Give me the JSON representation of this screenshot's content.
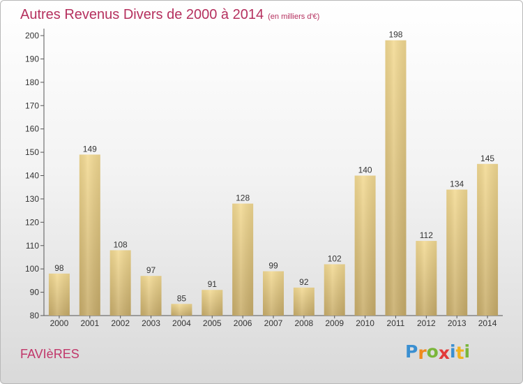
{
  "chart_data": {
    "type": "bar",
    "title": "Autres Revenus Divers de 2000 à 2014",
    "subtitle": "(en milliers d'€)",
    "categories": [
      "2000",
      "2001",
      "2002",
      "2003",
      "2004",
      "2005",
      "2006",
      "2007",
      "2008",
      "2009",
      "2010",
      "2011",
      "2012",
      "2013",
      "2014"
    ],
    "values": [
      98,
      149,
      108,
      97,
      85,
      91,
      128,
      99,
      92,
      102,
      140,
      198,
      112,
      134,
      145
    ],
    "ylim": [
      80,
      200
    ],
    "yticks": [
      80,
      90,
      100,
      110,
      120,
      130,
      140,
      150,
      160,
      170,
      180,
      190,
      200
    ],
    "grid": false,
    "bar_color": "#e6ca82",
    "title_color": "#b5305e"
  },
  "footer": {
    "location": "FAVIèRES",
    "brand": "Proxiti",
    "brand_letters": [
      {
        "ch": "P",
        "color": "#3a8fd1"
      },
      {
        "ch": "r",
        "color": "#f08a1d"
      },
      {
        "ch": "o",
        "color": "#7ab63a"
      },
      {
        "ch": "x",
        "color": "#e23a3a"
      },
      {
        "ch": "i",
        "color": "#3a8fd1"
      },
      {
        "ch": "t",
        "color": "#f0b21d"
      },
      {
        "ch": "i",
        "color": "#7ab63a"
      }
    ]
  }
}
